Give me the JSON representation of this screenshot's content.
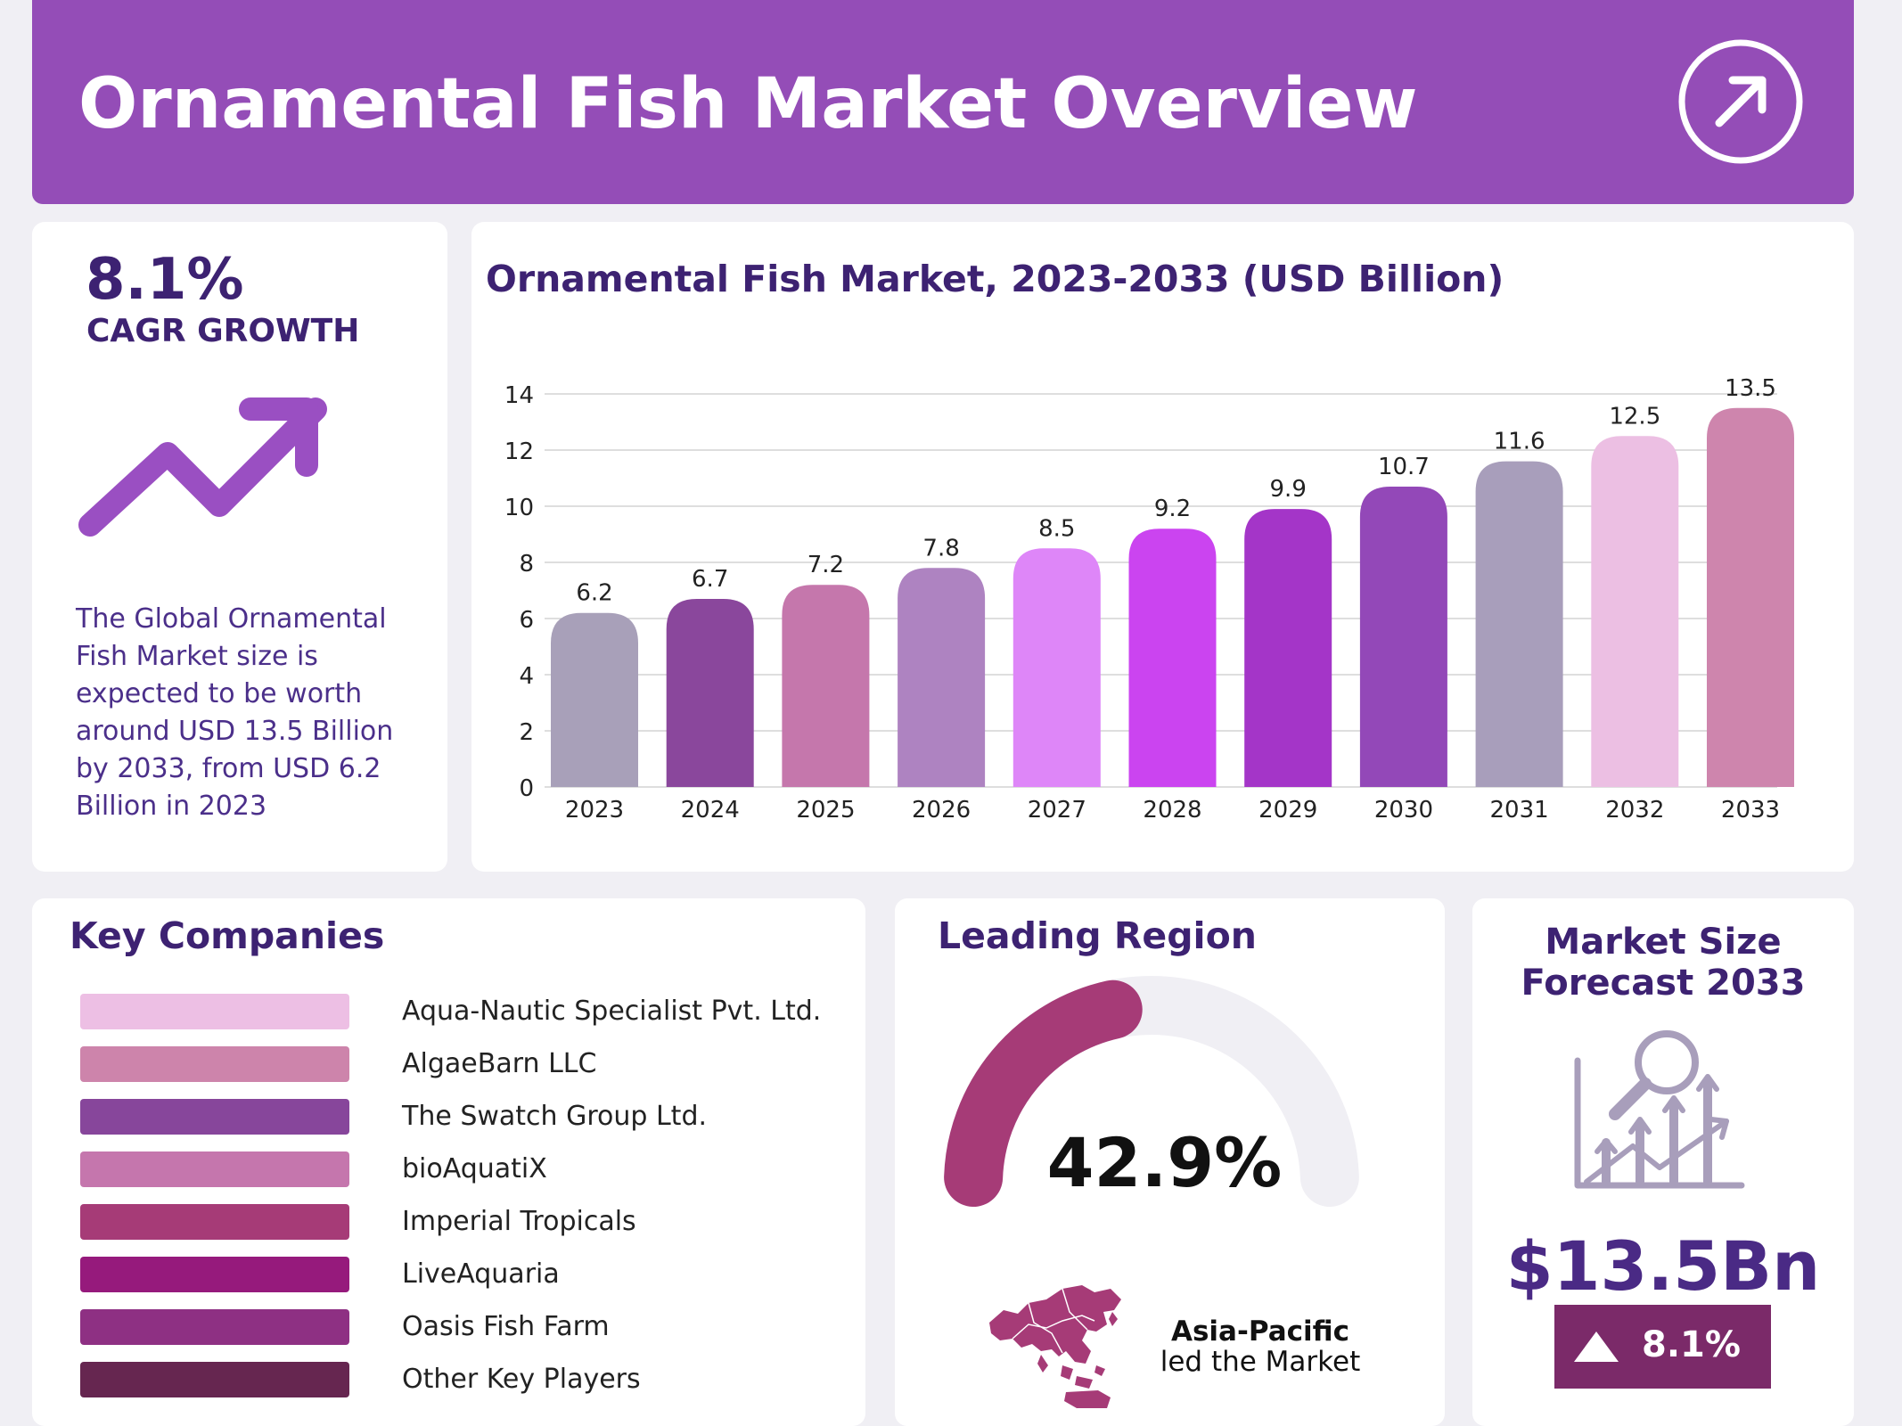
{
  "header": {
    "title": "Ornamental Fish Market Overview",
    "icon": "arrow-up-right-circle-icon"
  },
  "cagr": {
    "value": "8.1%",
    "label": "CAGR GROWTH",
    "icon": "trend-up-arrow-icon",
    "description": "The Global Ornamental Fish Market size is expected to be worth around USD 13.5 Billion by 2033, from USD 6.2 Billion in 2023"
  },
  "chart_data": {
    "type": "bar",
    "title": "Ornamental Fish Market, 2023-2033 (USD Billion)",
    "xlabel": "",
    "ylabel": "",
    "categories": [
      "2023",
      "2024",
      "2025",
      "2026",
      "2027",
      "2028",
      "2029",
      "2030",
      "2031",
      "2032",
      "2033"
    ],
    "values": [
      6.2,
      6.7,
      7.2,
      7.8,
      8.5,
      9.2,
      9.9,
      10.7,
      11.6,
      12.5,
      13.5
    ],
    "colors": [
      "#a8a0b9",
      "#8a479c",
      "#c577ac",
      "#ae83c1",
      "#de86f8",
      "#cb44f0",
      "#a435c8",
      "#9348b8",
      "#a89ebb",
      "#ecbfe3",
      "#ce85ad"
    ],
    "ylim": [
      0,
      14
    ],
    "yticks": [
      0,
      2,
      4,
      6,
      8,
      10,
      12,
      14
    ],
    "grid": true,
    "data_labels": true
  },
  "companies": {
    "title": "Key Companies",
    "items": [
      {
        "name": "Aqua-Nautic Specialist Pvt. Ltd.",
        "color": "#edbfe4"
      },
      {
        "name": "AlgaeBarn LLC",
        "color": "#cd84ab"
      },
      {
        "name": "The Swatch Group Ltd.",
        "color": "#87469b"
      },
      {
        "name": "bioAquatiX",
        "color": "#c576ad"
      },
      {
        "name": "Imperial Tropicals",
        "color": "#a63b77"
      },
      {
        "name": "LiveAquaria",
        "color": "#961a7c"
      },
      {
        "name": "Oasis Fish Farm",
        "color": "#8e3083"
      },
      {
        "name": "Other Key Players",
        "color": "#662650"
      }
    ]
  },
  "region": {
    "title": "Leading Region",
    "value": "42.9%",
    "share": 42.9,
    "gauge_color": "#a63b77",
    "track_color": "#f0eff4",
    "name": "Asia-Pacific",
    "subtitle": "led the Market",
    "map_icon": "asia-pacific-map-icon"
  },
  "market_size": {
    "title_line1": "Market Size",
    "title_line2": "Forecast 2033",
    "icon": "growth-analysis-icon",
    "value": "$13.5Bn",
    "badge": "8.1%",
    "badge_icon": "triangle-up-icon"
  }
}
